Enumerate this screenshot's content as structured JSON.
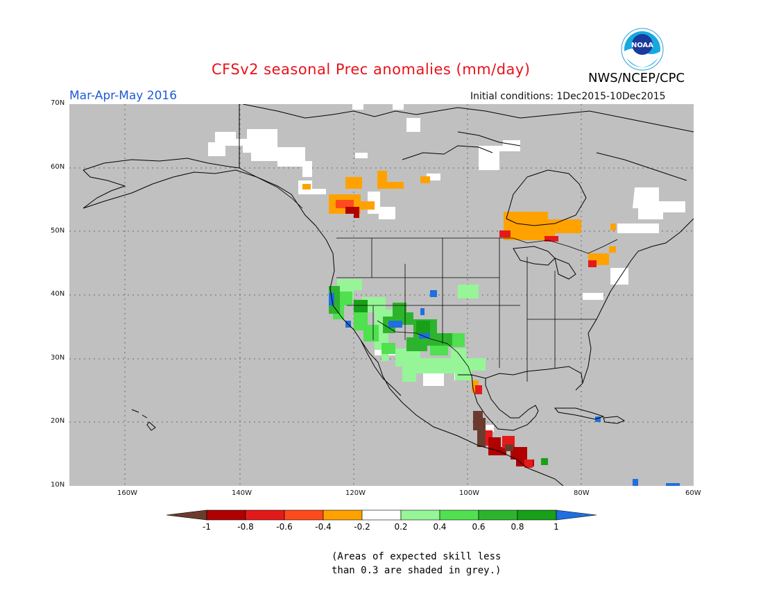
{
  "header": {
    "title": "CFSv2 seasonal Prec anomalies (mm/day)",
    "period": "Mar-Apr-May 2016",
    "initial_conditions": "Initial conditions: 1Dec2015-10Dec2015",
    "org": "NWS/NCEP/CPC",
    "logo_text": "NOAA"
  },
  "map": {
    "region": "North America",
    "land_color": "#c0c0c0",
    "ocean_color": "#c0c0c0",
    "lat_labels": [
      "70N",
      "60N",
      "50N",
      "40N",
      "30N",
      "20N",
      "10N"
    ],
    "lon_labels": [
      "160W",
      "140W",
      "120W",
      "100W",
      "80W",
      "60W"
    ]
  },
  "legend": {
    "labels": [
      "-1",
      "-0.8",
      "-0.6",
      "-0.4",
      "-0.2",
      "0.2",
      "0.4",
      "0.6",
      "0.8",
      "1"
    ],
    "colors": {
      "lt_-1": "#6b3c2e",
      "-1_-0.8": "#b00000",
      "-0.8_-0.6": "#e41a1a",
      "-0.6_-0.4": "#ff4a1c",
      "-0.4_-0.2": "#ffa200",
      "-0.2_0.2": "#ffffff",
      "0.2_0.4": "#96f596",
      "0.4_0.6": "#50e050",
      "0.6_0.8": "#2db42d",
      "0.8_1": "#18a018",
      "gt_1": "#1f6fe0"
    }
  },
  "note": {
    "line1": "(Areas of expected skill less",
    "line2": "than 0.3 are shaded in grey.)"
  }
}
